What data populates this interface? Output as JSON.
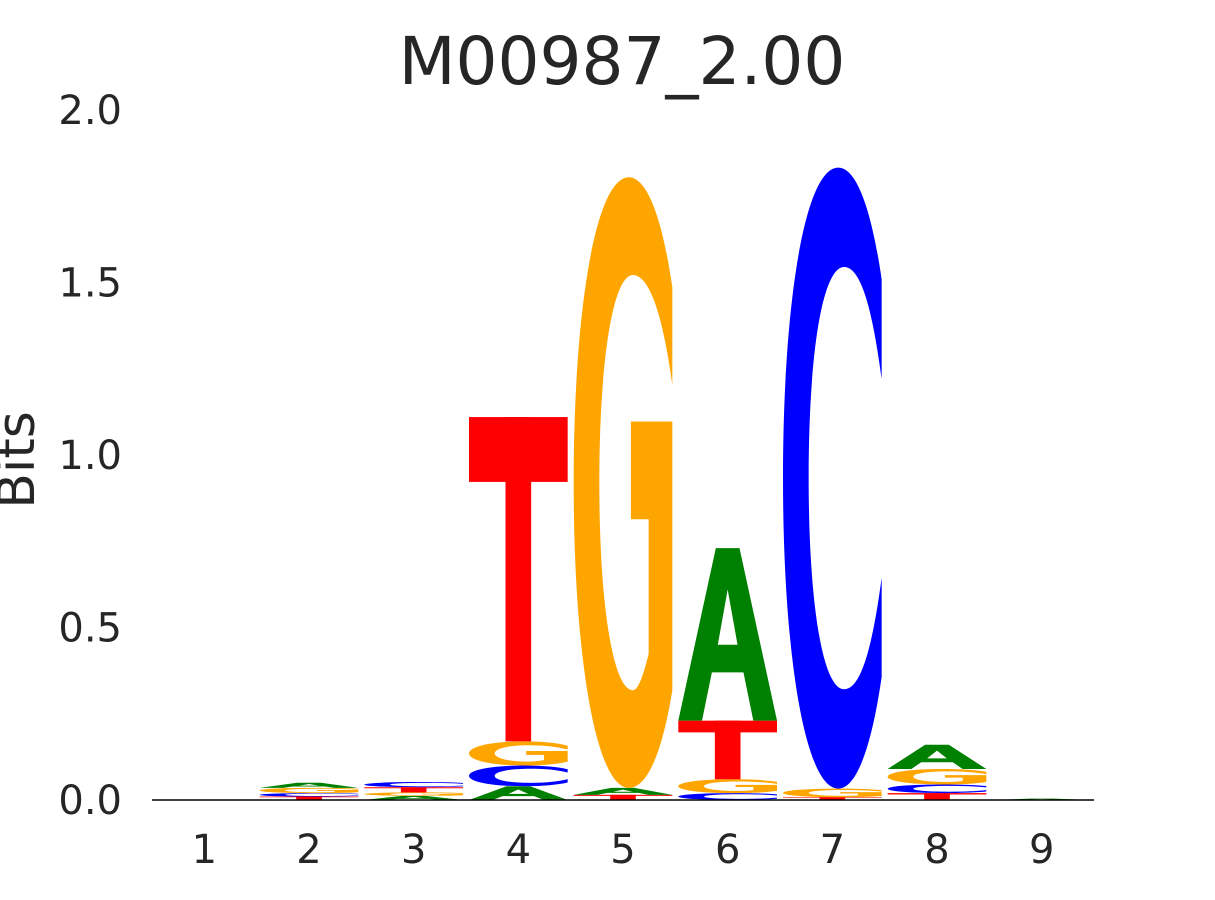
{
  "chart_data": {
    "type": "sequence_logo",
    "title": "M00987_2.00",
    "xlabel": "",
    "ylabel": "Bits",
    "ylim": [
      0,
      2.0
    ],
    "yticks": [
      "0.0",
      "0.5",
      "1.0",
      "1.5",
      "2.0"
    ],
    "positions": [
      "1",
      "2",
      "3",
      "4",
      "5",
      "6",
      "7",
      "8",
      "9"
    ],
    "colors": {
      "A": "#008000",
      "C": "#0000ff",
      "G": "#ffa500",
      "T": "#ff0000"
    },
    "stacks": [
      [],
      [
        {
          "base": "T",
          "bits": 0.01
        },
        {
          "base": "C",
          "bits": 0.01
        },
        {
          "base": "G",
          "bits": 0.015
        },
        {
          "base": "A",
          "bits": 0.015
        }
      ],
      [
        {
          "base": "A",
          "bits": 0.012
        },
        {
          "base": "G",
          "bits": 0.01
        },
        {
          "base": "T",
          "bits": 0.015
        },
        {
          "base": "C",
          "bits": 0.015
        }
      ],
      [
        {
          "base": "A",
          "bits": 0.04
        },
        {
          "base": "C",
          "bits": 0.06
        },
        {
          "base": "G",
          "bits": 0.07
        },
        {
          "base": "T",
          "bits": 0.94
        }
      ],
      [
        {
          "base": "T",
          "bits": 0.015
        },
        {
          "base": "A",
          "bits": 0.02
        },
        {
          "base": "G",
          "bits": 1.77
        }
      ],
      [
        {
          "base": "C",
          "bits": 0.02
        },
        {
          "base": "G",
          "bits": 0.04
        },
        {
          "base": "T",
          "bits": 0.17
        },
        {
          "base": "A",
          "bits": 0.5
        }
      ],
      [
        {
          "base": "T",
          "bits": 0.008
        },
        {
          "base": "G",
          "bits": 0.025
        },
        {
          "base": "C",
          "bits": 1.8
        }
      ],
      [
        {
          "base": "T",
          "bits": 0.02
        },
        {
          "base": "C",
          "bits": 0.025
        },
        {
          "base": "G",
          "bits": 0.045
        },
        {
          "base": "A",
          "bits": 0.07
        }
      ],
      [
        {
          "base": "A",
          "bits": 0.004
        }
      ]
    ]
  }
}
